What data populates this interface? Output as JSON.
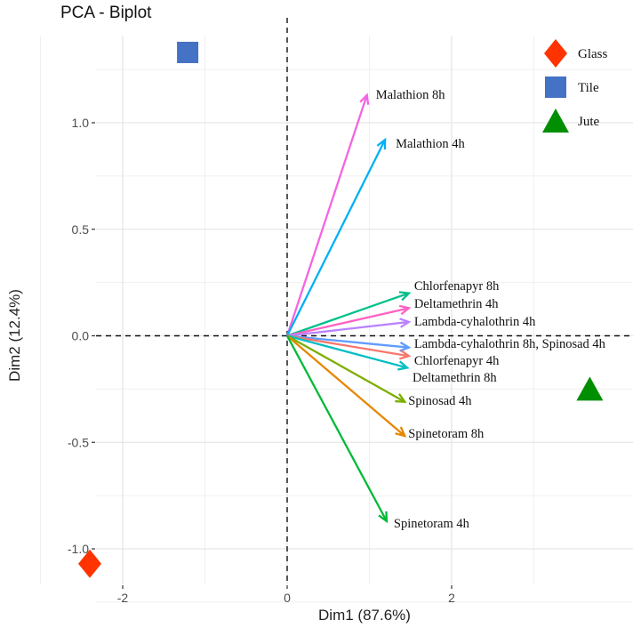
{
  "chart_data": {
    "type": "scatter",
    "title": "PCA - Biplot",
    "xlabel": "Dim1 (87.6%)",
    "ylabel": "Dim2 (12.4%)",
    "xlim": [
      -2.5,
      4.2
    ],
    "ylim": [
      -1.16,
      1.42
    ],
    "x_ticks": [
      -2,
      0,
      2
    ],
    "x_tick_labels": [
      "-2",
      "0",
      "2"
    ],
    "y_ticks": [
      -1.0,
      -0.5,
      0.0,
      0.5,
      1.0
    ],
    "y_tick_labels": [
      "-1.0",
      "-0.5",
      "0.0",
      "0.5",
      "1.0"
    ],
    "grid": true,
    "legend_position": "top-right",
    "points": [
      {
        "name": "Glass",
        "x": -2.4,
        "y": -1.07,
        "shape": "diamond",
        "color": "#FF3300"
      },
      {
        "name": "Tile",
        "x": -1.21,
        "y": 1.33,
        "shape": "square",
        "color": "#4472C4"
      },
      {
        "name": "Jute",
        "x": 3.68,
        "y": -0.25,
        "shape": "triangle",
        "color": "#008F00"
      }
    ],
    "arrows": [
      {
        "label": "Malathion 8h",
        "x": 0.97,
        "y": 1.13,
        "color": "#F564E3"
      },
      {
        "label": "Malathion 4h",
        "x": 1.19,
        "y": 0.92,
        "color": "#00B0F6"
      },
      {
        "label": "Chlorfenapyr 8h",
        "x": 1.48,
        "y": 0.2,
        "color": "#00C08B"
      },
      {
        "label": "Deltamethrin 4h",
        "x": 1.48,
        "y": 0.13,
        "color": "#FF61C3"
      },
      {
        "label": "Lambda-cyhalothrin 4h",
        "x": 1.48,
        "y": 0.065,
        "color": "#B983FF"
      },
      {
        "label": "Lambda-cyhalothrin 8h, Spinosad 4h",
        "x": 1.48,
        "y": -0.055,
        "color": "#619CFF"
      },
      {
        "label": "Chlorfenapyr 4h",
        "x": 1.48,
        "y": -0.095,
        "color": "#F8766D"
      },
      {
        "label": "Deltamethrin 8h",
        "x": 1.46,
        "y": -0.15,
        "color": "#00BFC4"
      },
      {
        "label": "Spinosad 4h",
        "x": 1.43,
        "y": -0.31,
        "color": "#7CAE00"
      },
      {
        "label": "Spinetoram 8h",
        "x": 1.43,
        "y": -0.47,
        "color": "#E58700"
      },
      {
        "label": "Spinetoram 4h",
        "x": 1.21,
        "y": -0.87,
        "color": "#00BA38"
      }
    ]
  }
}
